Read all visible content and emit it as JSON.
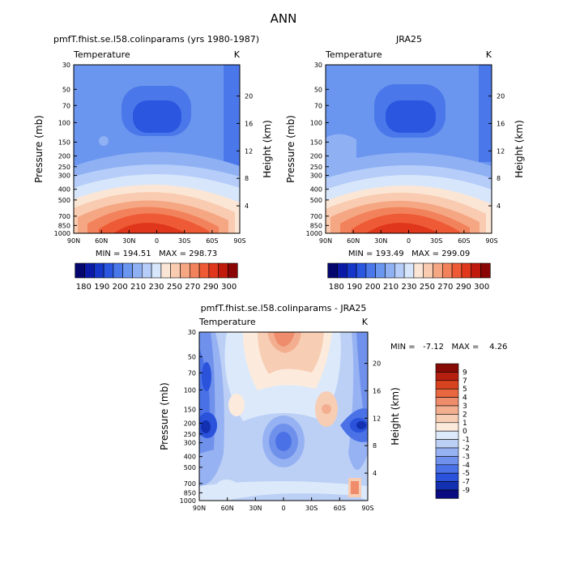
{
  "figure_title": "ANN",
  "colors": {
    "temp_scale": [
      "#04066e",
      "#0a1aa6",
      "#1536c8",
      "#2a56e0",
      "#4a78ea",
      "#6b96ef",
      "#8fb1f4",
      "#b5cdf8",
      "#d8e6fb",
      "#fbe6d6",
      "#f9cbb0",
      "#f5a784",
      "#f2825b",
      "#ee5a35",
      "#e0361b",
      "#c01a0c",
      "#8a0606"
    ],
    "diff_scale": [
      "#0a0a80",
      "#1230b0",
      "#2a52da",
      "#4a72e6",
      "#6f91ec",
      "#97b2f2",
      "#bcd0f6",
      "#dce9fa",
      "#fcebdc",
      "#f7cdb4",
      "#f3ae90",
      "#ee8c6c",
      "#e8673f",
      "#d8431f",
      "#b51f10",
      "#860b07"
    ]
  },
  "chart_data": [
    {
      "type": "heatmap",
      "title": "pmfT.fhist.se.l58.colinparams (yrs 1980-1987)",
      "left_label": "Temperature",
      "units": "K",
      "ylabel": "Pressure (mb)",
      "right_label": "Height (km)",
      "x_ticks": [
        "90N",
        "60N",
        "30N",
        "0",
        "30S",
        "60S",
        "90S"
      ],
      "y_ticks": [
        "30",
        "50",
        "70",
        "100",
        "150",
        "200",
        "250",
        "300",
        "400",
        "500",
        "700",
        "850",
        "1000"
      ],
      "height_ticks": [
        "4",
        "8",
        "12",
        "16",
        "20"
      ],
      "stats": "MIN = 194.51   MAX = 298.73",
      "min": 194.51,
      "max": 298.73
    },
    {
      "type": "heatmap",
      "title": "JRA25",
      "left_label": "Temperature",
      "units": "K",
      "ylabel": "Pressure (mb)",
      "right_label": "Height (km)",
      "x_ticks": [
        "90N",
        "60N",
        "30N",
        "0",
        "30S",
        "60S",
        "90S"
      ],
      "y_ticks": [
        "30",
        "50",
        "70",
        "100",
        "150",
        "200",
        "250",
        "300",
        "400",
        "500",
        "700",
        "850",
        "1000"
      ],
      "height_ticks": [
        "4",
        "8",
        "12",
        "16",
        "20"
      ],
      "stats": "MIN = 193.49   MAX = 299.09",
      "min": 193.49,
      "max": 299.09
    },
    {
      "type": "heatmap",
      "title": "pmfT.fhist.se.l58.colinparams - JRA25",
      "left_label": "Temperature",
      "units": "K",
      "ylabel": "Pressure (mb)",
      "right_label": "Height (km)",
      "x_ticks": [
        "90N",
        "60N",
        "30N",
        "0",
        "30S",
        "60S",
        "90S"
      ],
      "y_ticks": [
        "30",
        "50",
        "70",
        "100",
        "150",
        "200",
        "250",
        "300",
        "400",
        "500",
        "700",
        "850",
        "1000"
      ],
      "height_ticks": [
        "4",
        "8",
        "12",
        "16",
        "20"
      ],
      "stats": "MIN =   -7.12   MAX =    4.26",
      "min": -7.12,
      "max": 4.26
    }
  ],
  "colorbar_temp": {
    "labels": [
      "180",
      "190",
      "200",
      "210",
      "230",
      "250",
      "270",
      "290",
      "300"
    ]
  },
  "colorbar_diff": {
    "labels": [
      "9",
      "7",
      "5",
      "4",
      "3",
      "2",
      "1",
      "0",
      "-1",
      "-2",
      "-3",
      "-4",
      "-5",
      "-7",
      "-9"
    ]
  }
}
